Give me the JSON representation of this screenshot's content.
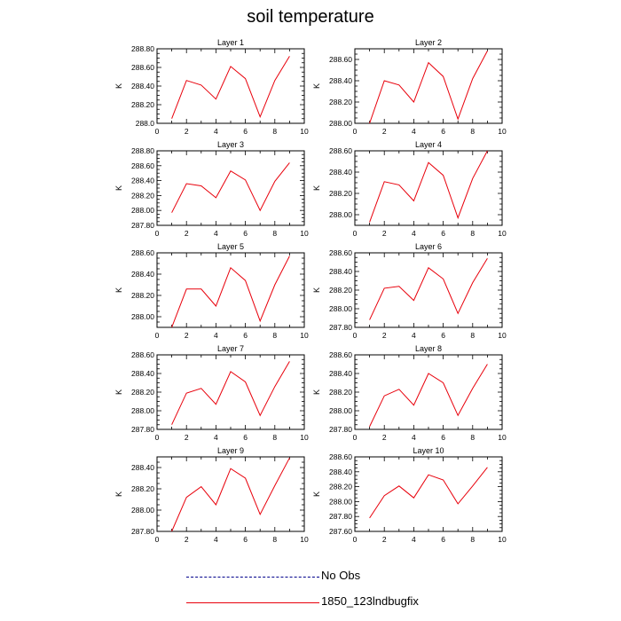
{
  "title": "soil temperature",
  "colors": {
    "model": "#e8000b",
    "obs": "#00008b",
    "axis": "#000000"
  },
  "legend": {
    "items": [
      {
        "label": "No Obs",
        "style": "dashed",
        "color": "#00008b"
      },
      {
        "label": "1850_123lndbugfix",
        "style": "solid",
        "color": "#e8000b"
      }
    ]
  },
  "chart_data": [
    {
      "type": "line",
      "title": "Layer 1",
      "ylabel": "K",
      "xlim": [
        0,
        10
      ],
      "x_ticks": [
        0,
        2,
        4,
        6,
        8,
        10
      ],
      "ylim": [
        288.0,
        288.8
      ],
      "y_ticks": [
        288.0,
        288.2,
        288.4,
        288.6,
        288.8
      ],
      "y_tick_labels": [
        "288.0",
        "288.20",
        "288.40",
        "288.60",
        "288.80"
      ],
      "series": [
        {
          "x": [
            1,
            2,
            3,
            4,
            5,
            6,
            7,
            8,
            9
          ],
          "y": [
            288.05,
            288.46,
            288.41,
            288.26,
            288.61,
            288.48,
            288.07,
            288.46,
            288.72
          ]
        }
      ]
    },
    {
      "type": "line",
      "title": "Layer 2",
      "ylabel": "K",
      "xlim": [
        0,
        10
      ],
      "x_ticks": [
        0,
        2,
        4,
        6,
        8,
        10
      ],
      "ylim": [
        288.0,
        288.7
      ],
      "y_ticks": [
        288.0,
        288.2,
        288.4,
        288.6
      ],
      "y_tick_labels": [
        "288.00",
        "288.20",
        "288.40",
        "288.60"
      ],
      "series": [
        {
          "x": [
            1,
            2,
            3,
            4,
            5,
            6,
            7,
            8,
            9
          ],
          "y": [
            288.0,
            288.4,
            288.36,
            288.2,
            288.57,
            288.44,
            288.04,
            288.42,
            288.68
          ]
        }
      ]
    },
    {
      "type": "line",
      "title": "Layer 3",
      "ylabel": "K",
      "xlim": [
        0,
        10
      ],
      "x_ticks": [
        0,
        2,
        4,
        6,
        8,
        10
      ],
      "ylim": [
        287.8,
        288.8
      ],
      "y_ticks": [
        287.8,
        288.0,
        288.2,
        288.4,
        288.6,
        288.8
      ],
      "y_tick_labels": [
        "287.80",
        "288.00",
        "288.20",
        "288.40",
        "288.60",
        "288.80"
      ],
      "series": [
        {
          "x": [
            1,
            2,
            3,
            4,
            5,
            6,
            7,
            8,
            9
          ],
          "y": [
            287.97,
            288.36,
            288.33,
            288.17,
            288.53,
            288.41,
            288.0,
            288.39,
            288.64
          ]
        }
      ]
    },
    {
      "type": "line",
      "title": "Layer 4",
      "ylabel": "K",
      "xlim": [
        0,
        10
      ],
      "x_ticks": [
        0,
        2,
        4,
        6,
        8,
        10
      ],
      "ylim": [
        287.9,
        288.6
      ],
      "y_ticks": [
        288.0,
        288.2,
        288.4,
        288.6
      ],
      "y_tick_labels": [
        "288.00",
        "288.20",
        "288.40",
        "288.60"
      ],
      "series": [
        {
          "x": [
            1,
            2,
            3,
            4,
            5,
            6,
            7,
            8,
            9
          ],
          "y": [
            287.93,
            288.31,
            288.28,
            288.13,
            288.49,
            288.37,
            287.97,
            288.34,
            288.6
          ]
        }
      ]
    },
    {
      "type": "line",
      "title": "Layer 5",
      "ylabel": "K",
      "xlim": [
        0,
        10
      ],
      "x_ticks": [
        0,
        2,
        4,
        6,
        8,
        10
      ],
      "ylim": [
        287.9,
        288.6
      ],
      "y_ticks": [
        288.0,
        288.2,
        288.4,
        288.6
      ],
      "y_tick_labels": [
        "288.00",
        "288.20",
        "288.40",
        "288.60"
      ],
      "series": [
        {
          "x": [
            1,
            2,
            3,
            4,
            5,
            6,
            7,
            8,
            9
          ],
          "y": [
            287.9,
            288.26,
            288.26,
            288.1,
            288.46,
            288.34,
            287.96,
            288.3,
            288.57
          ]
        }
      ]
    },
    {
      "type": "line",
      "title": "Layer 6",
      "ylabel": "K",
      "xlim": [
        0,
        10
      ],
      "x_ticks": [
        0,
        2,
        4,
        6,
        8,
        10
      ],
      "ylim": [
        287.8,
        288.6
      ],
      "y_ticks": [
        287.8,
        288.0,
        288.2,
        288.4,
        288.6
      ],
      "y_tick_labels": [
        "287.80",
        "288.00",
        "288.20",
        "288.40",
        "288.60"
      ],
      "series": [
        {
          "x": [
            1,
            2,
            3,
            4,
            5,
            6,
            7,
            8,
            9
          ],
          "y": [
            287.88,
            288.22,
            288.24,
            288.09,
            288.44,
            288.32,
            287.95,
            288.28,
            288.54
          ]
        }
      ]
    },
    {
      "type": "line",
      "title": "Layer 7",
      "ylabel": "K",
      "xlim": [
        0,
        10
      ],
      "x_ticks": [
        0,
        2,
        4,
        6,
        8,
        10
      ],
      "ylim": [
        287.8,
        288.6
      ],
      "y_ticks": [
        287.8,
        288.0,
        288.2,
        288.4,
        288.6
      ],
      "y_tick_labels": [
        "287.80",
        "288.00",
        "288.20",
        "288.40",
        "288.60"
      ],
      "series": [
        {
          "x": [
            1,
            2,
            3,
            4,
            5,
            6,
            7,
            8,
            9
          ],
          "y": [
            287.85,
            288.19,
            288.24,
            288.07,
            288.42,
            288.31,
            287.95,
            288.26,
            288.53
          ]
        }
      ]
    },
    {
      "type": "line",
      "title": "Layer 8",
      "ylabel": "K",
      "xlim": [
        0,
        10
      ],
      "x_ticks": [
        0,
        2,
        4,
        6,
        8,
        10
      ],
      "ylim": [
        287.8,
        288.6
      ],
      "y_ticks": [
        287.8,
        288.0,
        288.2,
        288.4,
        288.6
      ],
      "y_tick_labels": [
        "287.80",
        "288.00",
        "288.20",
        "288.40",
        "288.60"
      ],
      "series": [
        {
          "x": [
            1,
            2,
            3,
            4,
            5,
            6,
            7,
            8,
            9
          ],
          "y": [
            287.83,
            288.16,
            288.23,
            288.06,
            288.4,
            288.3,
            287.95,
            288.24,
            288.5
          ]
        }
      ]
    },
    {
      "type": "line",
      "title": "Layer 9",
      "ylabel": "K",
      "xlim": [
        0,
        10
      ],
      "x_ticks": [
        0,
        2,
        4,
        6,
        8,
        10
      ],
      "ylim": [
        287.8,
        288.5
      ],
      "y_ticks": [
        287.8,
        288.0,
        288.2,
        288.4
      ],
      "y_tick_labels": [
        "287.80",
        "288.00",
        "288.20",
        "288.40"
      ],
      "series": [
        {
          "x": [
            1,
            2,
            3,
            4,
            5,
            6,
            7,
            8,
            9
          ],
          "y": [
            287.8,
            288.12,
            288.22,
            288.05,
            288.39,
            288.3,
            287.96,
            288.23,
            288.49
          ]
        }
      ]
    },
    {
      "type": "line",
      "title": "Layer 10",
      "ylabel": "K",
      "xlim": [
        0,
        10
      ],
      "x_ticks": [
        0,
        2,
        4,
        6,
        8,
        10
      ],
      "ylim": [
        287.6,
        288.6
      ],
      "y_ticks": [
        287.6,
        287.8,
        288.0,
        288.2,
        288.4,
        288.6
      ],
      "y_tick_labels": [
        "287.60",
        "287.80",
        "288.00",
        "288.20",
        "288.40",
        "288.60"
      ],
      "series": [
        {
          "x": [
            1,
            2,
            3,
            4,
            5,
            6,
            7,
            8,
            9
          ],
          "y": [
            287.78,
            288.08,
            288.21,
            288.05,
            288.36,
            288.29,
            287.97,
            288.21,
            288.46
          ]
        }
      ]
    }
  ]
}
